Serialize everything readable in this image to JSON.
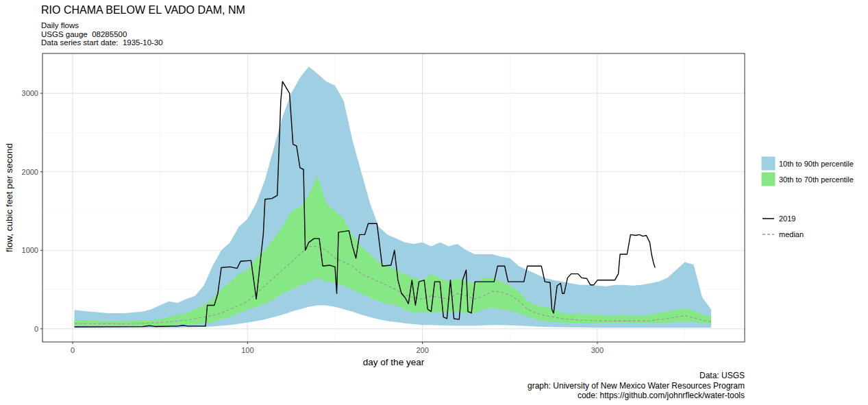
{
  "chart_data": {
    "type": "line",
    "title": "RIO CHAMA BELOW EL VADO DAM, NM",
    "subtitle": [
      "Daily flows",
      "USGS gauge  08285500",
      "Data series start date:  1935-10-30"
    ],
    "caption": [
      "Data: USGS",
      "graph: University of New Mexico Water Resources Program",
      "code: https://github.com/johnrfleck/water-tools"
    ],
    "x_label": "day of the year",
    "y_label": "flow, cubic feet per second",
    "xlim": [
      -17.25,
      384.25
    ],
    "ylim": [
      -167,
      3507
    ],
    "xticks": [
      0,
      100,
      200,
      300
    ],
    "yticks": [
      0,
      1000,
      2000,
      3000
    ],
    "grid": true,
    "legend": "right",
    "series": [
      {
        "name": "10th to 90th percentile",
        "type": "band",
        "color": "#9ecfe2",
        "x": [
          1,
          5,
          10,
          15,
          20,
          25,
          30,
          35,
          40,
          45,
          50,
          55,
          60,
          65,
          70,
          75,
          80,
          85,
          90,
          95,
          100,
          105,
          110,
          115,
          120,
          125,
          130,
          135,
          140,
          145,
          150,
          155,
          160,
          165,
          170,
          175,
          180,
          185,
          190,
          195,
          200,
          205,
          210,
          215,
          220,
          225,
          230,
          235,
          240,
          245,
          250,
          255,
          260,
          265,
          270,
          275,
          280,
          285,
          290,
          295,
          300,
          305,
          310,
          315,
          320,
          325,
          330,
          335,
          340,
          345,
          350,
          355,
          360,
          365
        ],
        "high": [
          240,
          230,
          220,
          210,
          200,
          200,
          200,
          210,
          220,
          250,
          300,
          350,
          330,
          380,
          420,
          550,
          800,
          1000,
          1100,
          1300,
          1400,
          1600,
          1900,
          2300,
          2700,
          3000,
          3200,
          3340,
          3250,
          3150,
          3100,
          2900,
          2400,
          2000,
          1600,
          1300,
          1200,
          1150,
          1100,
          1080,
          1100,
          1050,
          1100,
          1050,
          1080,
          1000,
          950,
          950,
          950,
          920,
          900,
          800,
          750,
          700,
          650,
          620,
          600,
          580,
          560,
          560,
          550,
          540,
          560,
          560,
          550,
          560,
          580,
          600,
          650,
          750,
          850,
          820,
          400,
          250
        ],
        "low": [
          15,
          15,
          15,
          15,
          15,
          15,
          15,
          15,
          15,
          15,
          15,
          15,
          15,
          18,
          20,
          25,
          30,
          40,
          50,
          65,
          80,
          100,
          120,
          150,
          180,
          220,
          250,
          280,
          300,
          300,
          280,
          250,
          220,
          180,
          150,
          120,
          100,
          85,
          70,
          60,
          50,
          48,
          45,
          42,
          40,
          40,
          40,
          45,
          50,
          48,
          45,
          40,
          35,
          30,
          25,
          22,
          20,
          18,
          18,
          16,
          15,
          15,
          15,
          15,
          15,
          15,
          15,
          15,
          15,
          15,
          15,
          15,
          15,
          15
        ]
      },
      {
        "name": "30th to 70th percentile",
        "type": "band",
        "color": "#85e885",
        "x": [
          1,
          5,
          10,
          15,
          20,
          25,
          30,
          35,
          40,
          45,
          50,
          55,
          60,
          65,
          70,
          75,
          80,
          85,
          90,
          95,
          100,
          105,
          110,
          115,
          120,
          125,
          130,
          135,
          140,
          145,
          150,
          155,
          160,
          165,
          170,
          175,
          180,
          185,
          190,
          195,
          200,
          205,
          210,
          215,
          220,
          225,
          230,
          235,
          240,
          245,
          250,
          255,
          260,
          265,
          270,
          275,
          280,
          285,
          290,
          295,
          300,
          305,
          310,
          315,
          320,
          325,
          330,
          335,
          340,
          345,
          350,
          355,
          360,
          365
        ],
        "high": [
          110,
          110,
          105,
          100,
          100,
          100,
          100,
          100,
          105,
          110,
          120,
          150,
          180,
          200,
          250,
          300,
          380,
          500,
          600,
          700,
          750,
          900,
          1000,
          1150,
          1300,
          1500,
          1550,
          1700,
          1950,
          1600,
          1500,
          1400,
          1200,
          1050,
          950,
          850,
          800,
          750,
          700,
          650,
          620,
          700,
          650,
          600,
          650,
          600,
          580,
          650,
          650,
          600,
          550,
          480,
          350,
          300,
          280,
          250,
          200,
          200,
          190,
          180,
          180,
          170,
          170,
          180,
          170,
          170,
          180,
          200,
          220,
          240,
          260,
          230,
          180,
          160
        ],
        "low": [
          35,
          35,
          32,
          30,
          30,
          30,
          30,
          30,
          30,
          35,
          40,
          45,
          50,
          55,
          60,
          70,
          80,
          120,
          150,
          200,
          250,
          280,
          320,
          380,
          450,
          500,
          550,
          600,
          650,
          600,
          600,
          550,
          500,
          450,
          400,
          350,
          320,
          300,
          250,
          200,
          220,
          200,
          220,
          200,
          220,
          200,
          200,
          250,
          270,
          250,
          230,
          200,
          160,
          120,
          100,
          90,
          80,
          75,
          70,
          70,
          70,
          70,
          70,
          70,
          70,
          70,
          70,
          75,
          80,
          90,
          100,
          90,
          70,
          60
        ]
      },
      {
        "name": "2019",
        "type": "line",
        "color": "#000000",
        "line_style": "solid",
        "x": [
          1,
          40,
          44,
          47,
          60,
          63,
          66,
          76,
          77,
          81,
          83,
          85,
          90,
          94,
          96,
          102,
          105,
          108,
          109,
          110,
          114,
          117,
          119,
          120,
          124,
          126,
          128,
          130,
          132,
          133,
          135,
          138,
          141,
          143,
          147,
          150,
          151,
          152,
          158,
          160,
          162,
          164,
          167,
          169,
          174,
          177,
          182,
          184,
          186,
          188,
          190,
          192,
          194,
          196,
          198,
          201,
          203,
          205,
          207,
          210,
          212,
          214,
          216,
          218,
          221,
          223,
          225,
          226,
          228,
          230,
          241,
          243,
          247,
          249,
          258,
          260,
          268,
          270,
          273,
          274,
          275,
          277,
          279,
          280,
          281,
          283,
          285,
          289,
          291,
          294,
          296,
          298,
          300,
          310,
          312,
          313,
          317,
          319,
          322,
          324,
          326,
          328,
          330,
          331,
          332,
          333
        ],
        "values": [
          25,
          28,
          40,
          30,
          35,
          45,
          35,
          35,
          300,
          300,
          450,
          780,
          790,
          770,
          860,
          870,
          380,
          1000,
          1200,
          1650,
          1660,
          1700,
          2900,
          3150,
          3000,
          2350,
          2330,
          2050,
          2030,
          1000,
          1100,
          1150,
          1150,
          800,
          810,
          790,
          450,
          1230,
          1250,
          1050,
          900,
          1200,
          1200,
          1340,
          1340,
          800,
          810,
          1000,
          620,
          450,
          400,
          320,
          620,
          300,
          600,
          620,
          250,
          220,
          600,
          600,
          150,
          130,
          620,
          130,
          120,
          620,
          750,
          220,
          200,
          600,
          600,
          800,
          800,
          600,
          600,
          800,
          800,
          600,
          590,
          250,
          200,
          550,
          580,
          450,
          450,
          650,
          700,
          700,
          650,
          640,
          560,
          560,
          620,
          620,
          700,
          950,
          950,
          1200,
          1190,
          1200,
          1180,
          1190,
          1100,
          950,
          850,
          780
        ]
      },
      {
        "name": "median",
        "type": "line",
        "color": "#999999",
        "line_style": "dashed",
        "x": [
          1,
          5,
          10,
          15,
          20,
          25,
          30,
          35,
          40,
          45,
          50,
          55,
          60,
          65,
          70,
          75,
          80,
          85,
          90,
          95,
          100,
          105,
          110,
          115,
          120,
          125,
          130,
          135,
          140,
          145,
          150,
          155,
          160,
          165,
          170,
          175,
          180,
          185,
          190,
          195,
          200,
          205,
          210,
          215,
          220,
          225,
          230,
          235,
          240,
          245,
          250,
          255,
          260,
          265,
          270,
          275,
          280,
          285,
          290,
          295,
          300,
          305,
          310,
          315,
          320,
          325,
          330,
          335,
          340,
          345,
          350,
          355,
          360,
          365
        ],
        "values": [
          70,
          68,
          65,
          65,
          65,
          65,
          65,
          68,
          70,
          75,
          80,
          90,
          100,
          110,
          130,
          150,
          170,
          200,
          250,
          300,
          350,
          450,
          550,
          650,
          750,
          850,
          950,
          1050,
          1050,
          1000,
          900,
          850,
          800,
          700,
          650,
          600,
          550,
          500,
          430,
          400,
          380,
          420,
          400,
          380,
          450,
          420,
          380,
          420,
          480,
          470,
          430,
          360,
          250,
          200,
          170,
          150,
          130,
          120,
          110,
          110,
          100,
          100,
          100,
          100,
          100,
          100,
          100,
          120,
          130,
          150,
          170,
          140,
          110,
          90
        ]
      }
    ]
  }
}
